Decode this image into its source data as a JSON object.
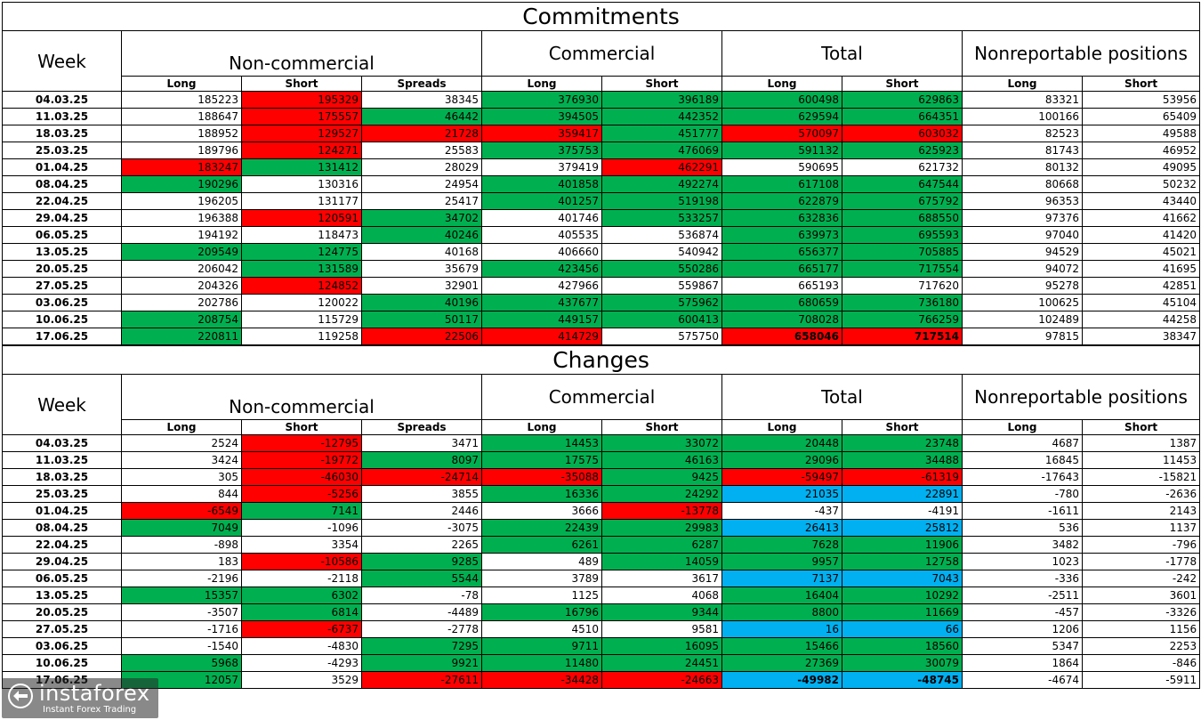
{
  "commitments": {
    "title": "Commitments",
    "week_header": "Week",
    "groups": [
      "Non-commercial",
      "Commercial",
      "Total",
      "Nonreportable positions"
    ],
    "subheaders": [
      "Long",
      "Short",
      "Spreads",
      "Long",
      "Short",
      "Long",
      "Short",
      "Long",
      "Short"
    ],
    "rows": [
      {
        "week": "04.03.25",
        "values": [
          "185223",
          "195329",
          "38345",
          "376930",
          "396189",
          "600498",
          "629863",
          "83321",
          "53956"
        ],
        "colors": [
          "",
          "r",
          "",
          "g",
          "g",
          "g",
          "g",
          "",
          ""
        ]
      },
      {
        "week": "11.03.25",
        "values": [
          "188647",
          "175557",
          "46442",
          "394505",
          "442352",
          "629594",
          "664351",
          "100166",
          "65409"
        ],
        "colors": [
          "",
          "r",
          "g",
          "g",
          "g",
          "g",
          "g",
          "",
          ""
        ]
      },
      {
        "week": "18.03.25",
        "values": [
          "188952",
          "129527",
          "21728",
          "359417",
          "451777",
          "570097",
          "603032",
          "82523",
          "49588"
        ],
        "colors": [
          "",
          "r",
          "r",
          "r",
          "g",
          "r",
          "r",
          "",
          ""
        ]
      },
      {
        "week": "25.03.25",
        "values": [
          "189796",
          "124271",
          "25583",
          "375753",
          "476069",
          "591132",
          "625923",
          "81743",
          "46952"
        ],
        "colors": [
          "",
          "r",
          "",
          "g",
          "g",
          "g",
          "g",
          "",
          ""
        ]
      },
      {
        "week": "01.04.25",
        "values": [
          "183247",
          "131412",
          "28029",
          "379419",
          "462291",
          "590695",
          "621732",
          "80132",
          "49095"
        ],
        "colors": [
          "r",
          "g",
          "",
          "",
          "r",
          "",
          "",
          "",
          ""
        ]
      },
      {
        "week": "08.04.25",
        "values": [
          "190296",
          "130316",
          "24954",
          "401858",
          "492274",
          "617108",
          "647544",
          "80668",
          "50232"
        ],
        "colors": [
          "g",
          "",
          "",
          "g",
          "g",
          "g",
          "g",
          "",
          ""
        ]
      },
      {
        "week": "22.04.25",
        "values": [
          "196205",
          "131177",
          "25417",
          "401257",
          "519198",
          "622879",
          "675792",
          "96353",
          "43440"
        ],
        "colors": [
          "",
          "",
          "",
          "g",
          "g",
          "g",
          "g",
          "",
          ""
        ]
      },
      {
        "week": "29.04.25",
        "values": [
          "196388",
          "120591",
          "34702",
          "401746",
          "533257",
          "632836",
          "688550",
          "97376",
          "41662"
        ],
        "colors": [
          "",
          "r",
          "g",
          "",
          "g",
          "g",
          "g",
          "",
          ""
        ]
      },
      {
        "week": "06.05.25",
        "values": [
          "194192",
          "118473",
          "40246",
          "405535",
          "536874",
          "639973",
          "695593",
          "97040",
          "41420"
        ],
        "colors": [
          "",
          "",
          "g",
          "",
          "",
          "g",
          "g",
          "",
          ""
        ]
      },
      {
        "week": "13.05.25",
        "values": [
          "209549",
          "124775",
          "40168",
          "406660",
          "540942",
          "656377",
          "705885",
          "94529",
          "45021"
        ],
        "colors": [
          "g",
          "g",
          "",
          "",
          "",
          "g",
          "g",
          "",
          ""
        ]
      },
      {
        "week": "20.05.25",
        "values": [
          "206042",
          "131589",
          "35679",
          "423456",
          "550286",
          "665177",
          "717554",
          "94072",
          "41695"
        ],
        "colors": [
          "",
          "g",
          "",
          "g",
          "g",
          "g",
          "g",
          "",
          ""
        ]
      },
      {
        "week": "27.05.25",
        "values": [
          "204326",
          "124852",
          "32901",
          "427966",
          "559867",
          "665193",
          "717620",
          "95278",
          "42851"
        ],
        "colors": [
          "",
          "r",
          "",
          "",
          "",
          "",
          "",
          "",
          ""
        ]
      },
      {
        "week": "03.06.25",
        "values": [
          "202786",
          "120022",
          "40196",
          "437677",
          "575962",
          "680659",
          "736180",
          "100625",
          "45104"
        ],
        "colors": [
          "",
          "",
          "g",
          "g",
          "g",
          "g",
          "g",
          "",
          ""
        ]
      },
      {
        "week": "10.06.25",
        "values": [
          "208754",
          "115729",
          "50117",
          "449157",
          "600413",
          "708028",
          "766259",
          "102489",
          "44258"
        ],
        "colors": [
          "g",
          "",
          "g",
          "g",
          "g",
          "g",
          "g",
          "",
          ""
        ]
      },
      {
        "week": "17.06.25",
        "values": [
          "220811",
          "119258",
          "22506",
          "414729",
          "575750",
          "658046",
          "717514",
          "97815",
          "38347"
        ],
        "colors": [
          "g",
          "",
          "r",
          "r",
          "",
          "r",
          "r",
          "",
          ""
        ],
        "bold": [
          false,
          false,
          false,
          false,
          false,
          true,
          true,
          false,
          false
        ]
      }
    ]
  },
  "changes": {
    "title": "Changes",
    "week_header": "Week",
    "groups": [
      "Non-commercial",
      "Commercial",
      "Total",
      "Nonreportable positions"
    ],
    "subheaders": [
      "Long",
      "Short",
      "Spreads",
      "Long",
      "Short",
      "Long",
      "Short",
      "Long",
      "Short"
    ],
    "rows": [
      {
        "week": "04.03.25",
        "values": [
          "2524",
          "-12795",
          "3471",
          "14453",
          "33072",
          "20448",
          "23748",
          "4687",
          "1387"
        ],
        "colors": [
          "",
          "r",
          "",
          "g",
          "g",
          "g",
          "g",
          "",
          ""
        ]
      },
      {
        "week": "11.03.25",
        "values": [
          "3424",
          "-19772",
          "8097",
          "17575",
          "46163",
          "29096",
          "34488",
          "16845",
          "11453"
        ],
        "colors": [
          "",
          "r",
          "g",
          "g",
          "g",
          "g",
          "g",
          "",
          ""
        ]
      },
      {
        "week": "18.03.25",
        "values": [
          "305",
          "-46030",
          "-24714",
          "-35088",
          "9425",
          "-59497",
          "-61319",
          "-17643",
          "-15821"
        ],
        "colors": [
          "",
          "r",
          "r",
          "r",
          "g",
          "r",
          "r",
          "",
          ""
        ]
      },
      {
        "week": "25.03.25",
        "values": [
          "844",
          "-5256",
          "3855",
          "16336",
          "24292",
          "21035",
          "22891",
          "-780",
          "-2636"
        ],
        "colors": [
          "",
          "r",
          "",
          "g",
          "g",
          "b",
          "b",
          "",
          ""
        ]
      },
      {
        "week": "01.04.25",
        "values": [
          "-6549",
          "7141",
          "2446",
          "3666",
          "-13778",
          "-437",
          "-4191",
          "-1611",
          "2143"
        ],
        "colors": [
          "r",
          "g",
          "",
          "",
          "r",
          "",
          "",
          "",
          ""
        ]
      },
      {
        "week": "08.04.25",
        "values": [
          "7049",
          "-1096",
          "-3075",
          "22439",
          "29983",
          "26413",
          "25812",
          "536",
          "1137"
        ],
        "colors": [
          "g",
          "",
          "",
          "g",
          "g",
          "b",
          "b",
          "",
          ""
        ]
      },
      {
        "week": "22.04.25",
        "values": [
          "-898",
          "3354",
          "2265",
          "6261",
          "6287",
          "7628",
          "11906",
          "3482",
          "-796"
        ],
        "colors": [
          "",
          "",
          "",
          "g",
          "g",
          "g",
          "g",
          "",
          ""
        ]
      },
      {
        "week": "29.04.25",
        "values": [
          "183",
          "-10586",
          "9285",
          "489",
          "14059",
          "9957",
          "12758",
          "1023",
          "-1778"
        ],
        "colors": [
          "",
          "r",
          "g",
          "",
          "g",
          "g",
          "g",
          "",
          ""
        ]
      },
      {
        "week": "06.05.25",
        "values": [
          "-2196",
          "-2118",
          "5544",
          "3789",
          "3617",
          "7137",
          "7043",
          "-336",
          "-242"
        ],
        "colors": [
          "",
          "",
          "g",
          "",
          "",
          "b",
          "b",
          "",
          ""
        ]
      },
      {
        "week": "13.05.25",
        "values": [
          "15357",
          "6302",
          "-78",
          "1125",
          "4068",
          "16404",
          "10292",
          "-2511",
          "3601"
        ],
        "colors": [
          "g",
          "g",
          "",
          "",
          "",
          "g",
          "g",
          "",
          ""
        ]
      },
      {
        "week": "20.05.25",
        "values": [
          "-3507",
          "6814",
          "-4489",
          "16796",
          "9344",
          "8800",
          "11669",
          "-457",
          "-3326"
        ],
        "colors": [
          "",
          "g",
          "",
          "g",
          "g",
          "g",
          "g",
          "",
          ""
        ]
      },
      {
        "week": "27.05.25",
        "values": [
          "-1716",
          "-6737",
          "-2778",
          "4510",
          "9581",
          "16",
          "66",
          "1206",
          "1156"
        ],
        "colors": [
          "",
          "r",
          "",
          "",
          "",
          "b",
          "b",
          "",
          ""
        ]
      },
      {
        "week": "03.06.25",
        "values": [
          "-1540",
          "-4830",
          "7295",
          "9711",
          "16095",
          "15466",
          "18560",
          "5347",
          "2253"
        ],
        "colors": [
          "",
          "",
          "g",
          "g",
          "g",
          "g",
          "g",
          "",
          ""
        ]
      },
      {
        "week": "10.06.25",
        "values": [
          "5968",
          "-4293",
          "9921",
          "11480",
          "24451",
          "27369",
          "30079",
          "1864",
          "-846"
        ],
        "colors": [
          "g",
          "",
          "g",
          "g",
          "g",
          "g",
          "g",
          "",
          ""
        ]
      },
      {
        "week": "17.06.25",
        "values": [
          "12057",
          "3529",
          "-27611",
          "-34428",
          "-24663",
          "-49982",
          "-48745",
          "-4674",
          "-5911"
        ],
        "colors": [
          "g",
          "",
          "r",
          "r",
          "r",
          "b",
          "b",
          "",
          ""
        ],
        "bold": [
          false,
          false,
          false,
          false,
          false,
          true,
          true,
          false,
          false
        ]
      }
    ]
  },
  "watermark": {
    "brand": "instaforex",
    "tagline": "Instant Forex Trading"
  }
}
